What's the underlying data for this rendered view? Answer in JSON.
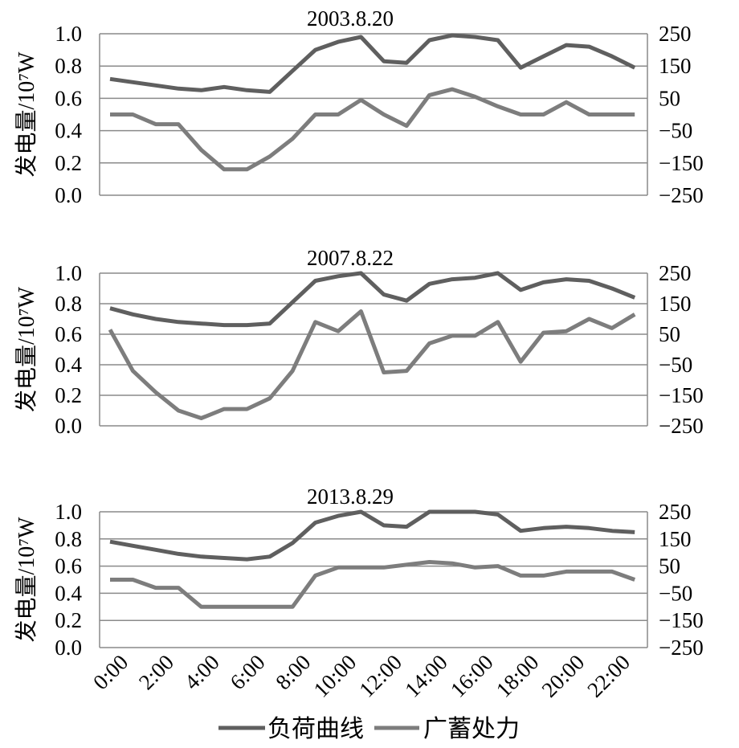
{
  "legend": {
    "load_label": "负荷曲线",
    "storage_label": "广蓄处力"
  },
  "colors": {
    "load": "#5f5f5f",
    "storage": "#7d7d7d",
    "grid": "#8a8a8a"
  },
  "x_tick_labels": [
    "0:00",
    "2:00",
    "4:00",
    "6:00",
    "8:00",
    "10:00",
    "12:00",
    "14:00",
    "16:00",
    "18:00",
    "20:00",
    "22:00"
  ],
  "chart_data": [
    {
      "type": "line",
      "title": "2003.8.20",
      "ylabel": "发电量/10⁷W",
      "ylim": [
        0.0,
        1.0
      ],
      "y_ticks": [
        "0.0",
        "0.2",
        "0.4",
        "0.6",
        "0.8",
        "1.0"
      ],
      "y2lim": [
        -250,
        250
      ],
      "y2_ticks": [
        "−250",
        "−150",
        "−50",
        "50",
        "150",
        "250"
      ],
      "x": [
        "0:00",
        "1:00",
        "2:00",
        "3:00",
        "4:00",
        "5:00",
        "6:00",
        "7:00",
        "8:00",
        "9:00",
        "10:00",
        "11:00",
        "12:00",
        "13:00",
        "14:00",
        "15:00",
        "16:00",
        "17:00",
        "18:00",
        "19:00",
        "20:00",
        "21:00",
        "22:00",
        "23:00"
      ],
      "series": [
        {
          "name": "负荷曲线",
          "axis": "left",
          "values": [
            0.72,
            0.7,
            0.68,
            0.66,
            0.65,
            0.67,
            0.65,
            0.64,
            0.77,
            0.9,
            0.95,
            0.98,
            0.83,
            0.82,
            0.96,
            0.99,
            0.98,
            0.96,
            0.79,
            0.86,
            0.93,
            0.92,
            0.86,
            0.79
          ]
        },
        {
          "name": "广蓄处力",
          "axis": "right",
          "values": [
            0,
            0,
            -30,
            -30,
            -110,
            -170,
            -170,
            -130,
            -75,
            0,
            0,
            45,
            0,
            -35,
            60,
            78,
            55,
            25,
            0,
            0,
            38,
            0,
            0,
            0
          ]
        }
      ]
    },
    {
      "type": "line",
      "title": "2007.8.22",
      "ylabel": "发电量/10⁷W",
      "ylim": [
        0.0,
        1.0
      ],
      "y_ticks": [
        "0.0",
        "0.2",
        "0.4",
        "0.6",
        "0.8",
        "1.0"
      ],
      "y2lim": [
        -250,
        250
      ],
      "y2_ticks": [
        "−250",
        "−150",
        "−50",
        "50",
        "150",
        "250"
      ],
      "x": [
        "0:00",
        "1:00",
        "2:00",
        "3:00",
        "4:00",
        "5:00",
        "6:00",
        "7:00",
        "8:00",
        "9:00",
        "10:00",
        "11:00",
        "12:00",
        "13:00",
        "14:00",
        "15:00",
        "16:00",
        "17:00",
        "18:00",
        "19:00",
        "20:00",
        "21:00",
        "22:00",
        "23:00"
      ],
      "series": [
        {
          "name": "负荷曲线",
          "axis": "left",
          "values": [
            0.77,
            0.73,
            0.7,
            0.68,
            0.67,
            0.66,
            0.66,
            0.67,
            0.81,
            0.95,
            0.98,
            1.0,
            0.86,
            0.82,
            0.93,
            0.96,
            0.97,
            1.0,
            0.89,
            0.94,
            0.96,
            0.95,
            0.9,
            0.84
          ]
        },
        {
          "name": "广蓄处力",
          "axis": "right",
          "values": [
            65,
            -70,
            -140,
            -200,
            -225,
            -195,
            -195,
            -160,
            -70,
            90,
            60,
            125,
            -75,
            -70,
            20,
            45,
            45,
            90,
            -40,
            55,
            60,
            100,
            70,
            115
          ]
        }
      ]
    },
    {
      "type": "line",
      "title": "2013.8.29",
      "ylabel": "发电量/10⁷W",
      "ylim": [
        0.0,
        1.0
      ],
      "y_ticks": [
        "0.0",
        "0.2",
        "0.4",
        "0.6",
        "0.8",
        "1.0"
      ],
      "y2lim": [
        -250,
        250
      ],
      "y2_ticks": [
        "−250",
        "−150",
        "−50",
        "50",
        "150",
        "250"
      ],
      "x": [
        "0:00",
        "1:00",
        "2:00",
        "3:00",
        "4:00",
        "5:00",
        "6:00",
        "7:00",
        "8:00",
        "9:00",
        "10:00",
        "11:00",
        "12:00",
        "13:00",
        "14:00",
        "15:00",
        "16:00",
        "17:00",
        "18:00",
        "19:00",
        "20:00",
        "21:00",
        "22:00",
        "23:00"
      ],
      "series": [
        {
          "name": "负荷曲线",
          "axis": "left",
          "values": [
            0.78,
            0.75,
            0.72,
            0.69,
            0.67,
            0.66,
            0.65,
            0.67,
            0.77,
            0.92,
            0.97,
            1.0,
            0.9,
            0.89,
            1.0,
            1.0,
            1.0,
            0.98,
            0.86,
            0.88,
            0.89,
            0.88,
            0.86,
            0.85
          ]
        },
        {
          "name": "广蓄处力",
          "axis": "right",
          "values": [
            0,
            0,
            -30,
            -30,
            -100,
            -100,
            -100,
            -100,
            -100,
            15,
            45,
            45,
            45,
            55,
            65,
            60,
            45,
            50,
            15,
            15,
            30,
            30,
            30,
            0
          ]
        }
      ]
    }
  ]
}
